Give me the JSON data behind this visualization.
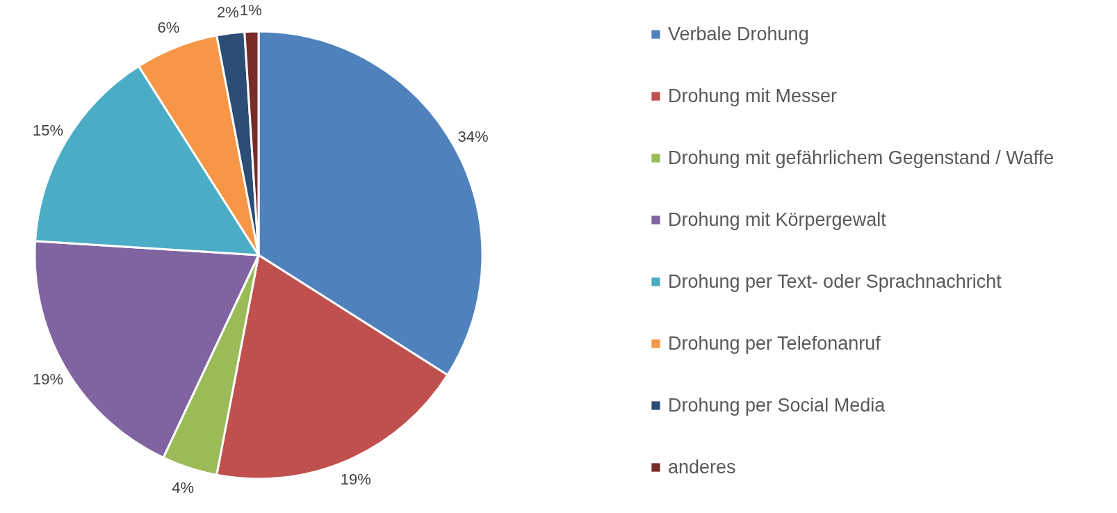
{
  "chart_data": {
    "type": "pie",
    "categories": [
      "Verbale Drohung",
      "Drohung mit Messer",
      "Drohung mit gefährlichem Gegenstand / Waffe",
      "Drohung mit Körpergewalt",
      "Drohung per Text- oder Sprachnachricht",
      "Drohung per Telefonanruf",
      "Drohung per Social Media",
      "anderes"
    ],
    "values": [
      34,
      19,
      4,
      19,
      15,
      6,
      2,
      1
    ],
    "colors": [
      "#4f81bd",
      "#c0504d",
      "#9bbb59",
      "#8064a2",
      "#4bacc6",
      "#f79646",
      "#2c4d75",
      "#772c2a"
    ],
    "value_labels": [
      "34%",
      "19%",
      "4%",
      "19%",
      "15%",
      "6%",
      "2%",
      "1%"
    ],
    "legend": "right"
  }
}
